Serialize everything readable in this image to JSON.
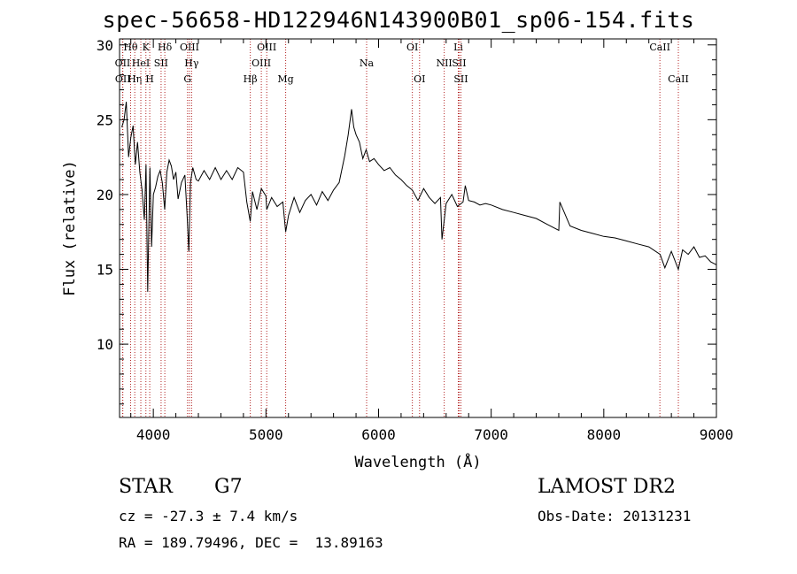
{
  "header": {
    "title": "spec-56658-HD122946N143900B01_sp06-154.fits"
  },
  "info": {
    "class_label": "STAR",
    "subclass": "G7",
    "survey": "LAMOST DR2",
    "cz": "cz = -27.3 ± 7.4 km/s",
    "obs_date": "Obs-Date: 20131231",
    "radec": "RA = 189.79496, DEC =  13.89163"
  },
  "chart_data": {
    "type": "line",
    "title": "spec-56658-HD122946N143900B01_sp06-154.fits",
    "xlabel": "Wavelength (Å)",
    "ylabel": "Flux (relative)",
    "xlim": [
      3700,
      9000
    ],
    "ylim": [
      5.1,
      30.4
    ],
    "xticks": [
      4000,
      5000,
      6000,
      7000,
      8000,
      9000
    ],
    "yticks": [
      10,
      15,
      20,
      25,
      30
    ],
    "grid": false,
    "colors": {
      "line": "#000000",
      "marker": "#b22222"
    },
    "series": [
      {
        "x": [
          3720,
          3740,
          3760,
          3780,
          3800,
          3820,
          3840,
          3860,
          3880,
          3900,
          3920,
          3935,
          3950,
          3970,
          3985,
          4000,
          4020,
          4040,
          4060,
          4080,
          4101,
          4120,
          4140,
          4160,
          4180,
          4200,
          4220,
          4250,
          4280,
          4300,
          4315,
          4330,
          4350,
          4380,
          4400,
          4450,
          4500,
          4550,
          4600,
          4650,
          4700,
          4750,
          4800,
          4830,
          4861,
          4880,
          4920,
          4959,
          5000,
          5007,
          5050,
          5100,
          5150,
          5175,
          5200,
          5250,
          5300,
          5350,
          5400,
          5450,
          5500,
          5550,
          5600,
          5650,
          5700,
          5730,
          5760,
          5780,
          5800,
          5830,
          5860,
          5890,
          5920,
          5960,
          6000,
          6050,
          6100,
          6150,
          6200,
          6250,
          6300,
          6350,
          6400,
          6450,
          6500,
          6550,
          6563,
          6600,
          6650,
          6700,
          6750,
          6770,
          6800,
          6850,
          6900,
          6950,
          7000,
          7100,
          7200,
          7300,
          7400,
          7500,
          7600,
          7610,
          7700,
          7800,
          7900,
          8000,
          8100,
          8200,
          8300,
          8400,
          8500,
          8542,
          8600,
          8662,
          8700,
          8750,
          8800,
          8850,
          8900,
          8950,
          9000
        ],
        "y": [
          24.5,
          25.0,
          26.2,
          22.5,
          23.8,
          24.6,
          22.0,
          23.5,
          21.5,
          20.3,
          18.3,
          22.0,
          13.5,
          21.8,
          16.5,
          20.0,
          20.5,
          21.2,
          21.6,
          20.8,
          19.0,
          21.5,
          22.3,
          21.9,
          21.0,
          21.5,
          19.7,
          20.8,
          21.3,
          18.6,
          16.2,
          20.8,
          21.8,
          21.0,
          20.9,
          21.6,
          21.0,
          21.8,
          21.0,
          21.6,
          21.0,
          21.8,
          21.5,
          19.5,
          18.2,
          20.2,
          19.0,
          20.4,
          19.9,
          19.0,
          19.8,
          19.2,
          19.5,
          17.5,
          18.6,
          19.8,
          18.8,
          19.6,
          20.0,
          19.3,
          20.2,
          19.6,
          20.3,
          20.8,
          22.6,
          24.0,
          25.7,
          24.5,
          24.0,
          23.5,
          22.4,
          23.0,
          22.2,
          22.4,
          22.0,
          21.6,
          21.8,
          21.3,
          21.0,
          20.6,
          20.3,
          19.6,
          20.4,
          19.8,
          19.4,
          19.8,
          17.0,
          19.4,
          20.0,
          19.2,
          19.5,
          20.6,
          19.6,
          19.5,
          19.3,
          19.4,
          19.3,
          19.0,
          18.8,
          18.6,
          18.4,
          18.0,
          17.6,
          19.5,
          17.9,
          17.6,
          17.4,
          17.2,
          17.1,
          16.9,
          16.7,
          16.5,
          16.0,
          15.1,
          16.2,
          15.0,
          16.3,
          16.0,
          16.5,
          15.8,
          15.9,
          15.5,
          15.3
        ]
      }
    ],
    "lines": [
      {
        "name": "OII",
        "wl": 3727,
        "row": 1
      },
      {
        "name": "OII",
        "wl": 3729,
        "row": 2
      },
      {
        "name": "Hθ",
        "wl": 3798,
        "row": 0
      },
      {
        "name": "Hη",
        "wl": 3835,
        "row": 2
      },
      {
        "name": "HeI",
        "wl": 3889,
        "row": 1
      },
      {
        "name": "K",
        "wl": 3934,
        "row": 0
      },
      {
        "name": "H",
        "wl": 3968,
        "row": 2
      },
      {
        "name": "SII",
        "wl": 4069,
        "row": 1
      },
      {
        "name": "Hδ",
        "wl": 4102,
        "row": 0
      },
      {
        "name": "OIII",
        "wl": 4321,
        "row": 0
      },
      {
        "name": "G",
        "wl": 4304,
        "row": 2
      },
      {
        "name": "Hγ",
        "wl": 4340,
        "row": 1
      },
      {
        "name": "Hβ",
        "wl": 4861,
        "row": 2
      },
      {
        "name": "OIII",
        "wl": 4959,
        "row": 1
      },
      {
        "name": "OIII",
        "wl": 5007,
        "row": 0
      },
      {
        "name": "Mg",
        "wl": 5175,
        "row": 2
      },
      {
        "name": "Na",
        "wl": 5894,
        "row": 1
      },
      {
        "name": "OI",
        "wl": 6300,
        "row": 0
      },
      {
        "name": "OI",
        "wl": 6364,
        "row": 2
      },
      {
        "name": "NII",
        "wl": 6583,
        "row": 1
      },
      {
        "name": "Li",
        "wl": 6708,
        "row": 0
      },
      {
        "name": "SII",
        "wl": 6716,
        "row": 1
      },
      {
        "name": "SII",
        "wl": 6731,
        "row": 2
      },
      {
        "name": "CaII",
        "wl": 8498,
        "row": 0
      },
      {
        "name": "CaII",
        "wl": 8662,
        "row": 2
      }
    ]
  }
}
